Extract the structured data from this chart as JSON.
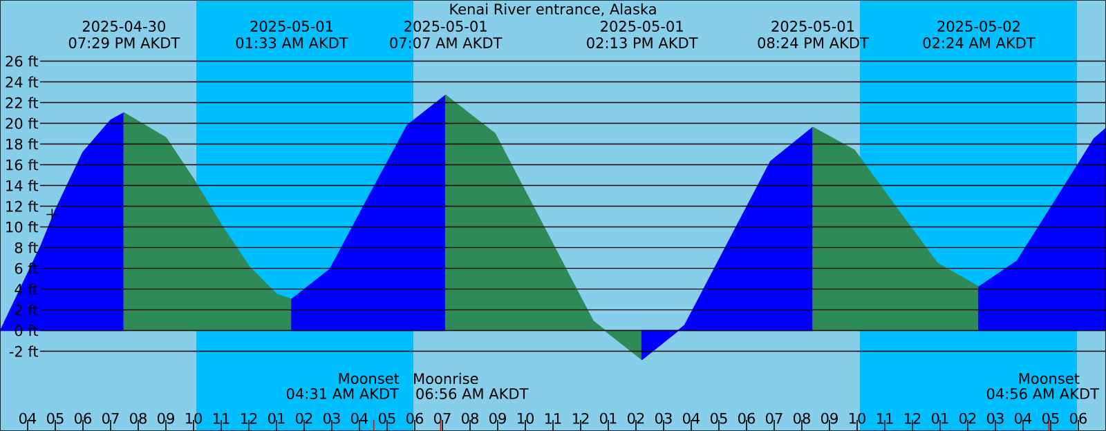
{
  "chart_data": {
    "type": "area",
    "title": "Kenai River entrance, Alaska",
    "xlim": [
      "2025-04-30T15:00",
      "2025-05-02T07:00"
    ],
    "ylim": [
      -9.7,
      31.9
    ],
    "grid": "y",
    "yticks": [
      {
        "value": -2,
        "label": "-2 ft"
      },
      {
        "value": 0,
        "label": "0 ft"
      },
      {
        "value": 2,
        "label": "2 ft"
      },
      {
        "value": 4,
        "label": "4 ft"
      },
      {
        "value": 6,
        "label": "6 ft"
      },
      {
        "value": 8,
        "label": "8 ft"
      },
      {
        "value": 10,
        "label": "10 ft"
      },
      {
        "value": 12,
        "label": "12 ft"
      },
      {
        "value": 14,
        "label": "14 ft"
      },
      {
        "value": 16,
        "label": "16 ft"
      },
      {
        "value": 18,
        "label": "18 ft"
      },
      {
        "value": 20,
        "label": "20 ft"
      },
      {
        "value": 22,
        "label": "22 ft"
      },
      {
        "value": 24,
        "label": "24 ft"
      },
      {
        "value": 26,
        "label": "26 ft"
      }
    ],
    "xticks": [
      {
        "value": "2025-04-30T16:00",
        "label": "04"
      },
      {
        "value": "2025-04-30T17:00",
        "label": "05"
      },
      {
        "value": "2025-04-30T18:00",
        "label": "06"
      },
      {
        "value": "2025-04-30T19:00",
        "label": "07"
      },
      {
        "value": "2025-04-30T20:00",
        "label": "08"
      },
      {
        "value": "2025-04-30T21:00",
        "label": "09"
      },
      {
        "value": "2025-04-30T22:00",
        "label": "10"
      },
      {
        "value": "2025-04-30T23:00",
        "label": "11"
      },
      {
        "value": "2025-05-01T00:00",
        "label": "12"
      },
      {
        "value": "2025-05-01T01:00",
        "label": "01"
      },
      {
        "value": "2025-05-01T02:00",
        "label": "02"
      },
      {
        "value": "2025-05-01T03:00",
        "label": "03"
      },
      {
        "value": "2025-05-01T04:00",
        "label": "04"
      },
      {
        "value": "2025-05-01T05:00",
        "label": "05"
      },
      {
        "value": "2025-05-01T06:00",
        "label": "06"
      },
      {
        "value": "2025-05-01T07:00",
        "label": "07"
      },
      {
        "value": "2025-05-01T08:00",
        "label": "08"
      },
      {
        "value": "2025-05-01T09:00",
        "label": "09"
      },
      {
        "value": "2025-05-01T10:00",
        "label": "10"
      },
      {
        "value": "2025-05-01T11:00",
        "label": "11"
      },
      {
        "value": "2025-05-01T12:00",
        "label": "12"
      },
      {
        "value": "2025-05-01T13:00",
        "label": "01"
      },
      {
        "value": "2025-05-01T14:00",
        "label": "02"
      },
      {
        "value": "2025-05-01T15:00",
        "label": "03"
      },
      {
        "value": "2025-05-01T16:00",
        "label": "04"
      },
      {
        "value": "2025-05-01T17:00",
        "label": "05"
      },
      {
        "value": "2025-05-01T18:00",
        "label": "06"
      },
      {
        "value": "2025-05-01T19:00",
        "label": "07"
      },
      {
        "value": "2025-05-01T20:00",
        "label": "08"
      },
      {
        "value": "2025-05-01T21:00",
        "label": "09"
      },
      {
        "value": "2025-05-01T22:00",
        "label": "10"
      },
      {
        "value": "2025-05-01T23:00",
        "label": "11"
      },
      {
        "value": "2025-05-02T00:00",
        "label": "12"
      },
      {
        "value": "2025-05-02T01:00",
        "label": "01"
      },
      {
        "value": "2025-05-02T02:00",
        "label": "02"
      },
      {
        "value": "2025-05-02T03:00",
        "label": "03"
      },
      {
        "value": "2025-05-02T04:00",
        "label": "04"
      },
      {
        "value": "2025-05-02T05:00",
        "label": "05"
      },
      {
        "value": "2025-05-02T06:00",
        "label": "06"
      },
      {
        "value": "2025-05-01T04:31",
        "label": null
      },
      {
        "value": "2025-05-01T06:56",
        "label": null
      },
      {
        "value": "2025-05-02T04:56",
        "label": null
      }
    ],
    "bands": [
      {
        "axis": "x",
        "from": "2025-04-30T15:00",
        "to": "2025-04-30T22:06",
        "color": "#87ceeb"
      },
      {
        "axis": "x",
        "from": "2025-04-30T22:06",
        "to": "2025-05-01T05:57",
        "color": "#00bfff"
      },
      {
        "axis": "x",
        "from": "2025-05-01T05:57",
        "to": "2025-05-01T22:06",
        "color": "#87ceeb"
      },
      {
        "axis": "x",
        "from": "2025-05-01T22:06",
        "to": "2025-05-02T05:57",
        "color": "#00bfff"
      },
      {
        "axis": "x",
        "from": "2025-05-02T05:57",
        "to": "2025-05-02T07:00",
        "color": "#87ceeb"
      }
    ],
    "series": [
      {
        "color": "#0000ff",
        "x": [
          "2025-04-30T15:00",
          "2025-04-30T16:30",
          "2025-04-30T17:00",
          "2025-04-30T18:00",
          "2025-04-30T19:00",
          "2025-04-30T19:29"
        ],
        "values": [
          -0.1,
          8.3,
          11.6,
          17.2,
          20.3,
          21.0
        ]
      },
      {
        "color": "#2e8b57",
        "x": [
          "2025-04-30T19:29",
          "2025-04-30T21:00",
          "2025-04-30T22:00",
          "2025-04-30T23:00",
          "2025-05-01T00:00",
          "2025-05-01T01:00",
          "2025-05-01T01:33"
        ],
        "values": [
          21.0,
          18.6,
          14.6,
          10.2,
          6.2,
          3.5,
          3.0
        ]
      },
      {
        "color": "#0000ff",
        "x": [
          "2025-05-01T01:33",
          "2025-05-01T02:56",
          "2025-05-01T04:20",
          "2025-05-01T05:44",
          "2025-05-01T07:07"
        ],
        "values": [
          3.0,
          5.9,
          12.9,
          19.8,
          22.7
        ]
      },
      {
        "color": "#2e8b57",
        "x": [
          "2025-05-01T07:07",
          "2025-05-01T08:54",
          "2025-05-01T10:40",
          "2025-05-01T12:27",
          "2025-05-01T14:13"
        ],
        "values": [
          22.7,
          19.0,
          10.0,
          0.9,
          -2.8
        ]
      },
      {
        "color": "#0000ff",
        "x": [
          "2025-05-01T14:13",
          "2025-05-01T15:46",
          "2025-05-01T17:19",
          "2025-05-01T18:52",
          "2025-05-01T20:24"
        ],
        "values": [
          -2.8,
          0.5,
          8.4,
          16.3,
          19.6
        ]
      },
      {
        "color": "#2e8b57",
        "x": [
          "2025-05-01T20:24",
          "2025-05-01T21:54",
          "2025-05-01T23:24",
          "2025-05-02T00:54",
          "2025-05-02T02:24"
        ],
        "values": [
          19.6,
          17.4,
          11.9,
          6.5,
          4.2
        ]
      },
      {
        "color": "#0000ff",
        "x": [
          "2025-05-02T02:24",
          "2025-05-02T03:47",
          "2025-05-02T05:11",
          "2025-05-02T06:34",
          "2025-05-02T07:00"
        ],
        "values": [
          4.2,
          6.7,
          12.6,
          18.5,
          19.5
        ]
      },
      {
        "type": "scatter",
        "color": "#000000",
        "marker": "cross",
        "x": [
          "2025-04-30T16:53"
        ],
        "values": [
          11.2
        ]
      }
    ],
    "annotations": [
      "2025-04-30",
      "07:29 PM AKDT",
      "2025-05-01",
      "01:33 AM AKDT",
      "2025-05-01",
      "07:07 AM AKDT",
      "2025-05-01",
      "02:13 PM AKDT",
      "2025-05-01",
      "08:24 PM AKDT",
      "2025-05-02",
      "02:24 AM AKDT",
      "Moonset",
      "04:31 AM AKDT",
      "Moonrise",
      "06:56 AM AKDT",
      "Moonset",
      "04:56 AM AKDT"
    ]
  }
}
